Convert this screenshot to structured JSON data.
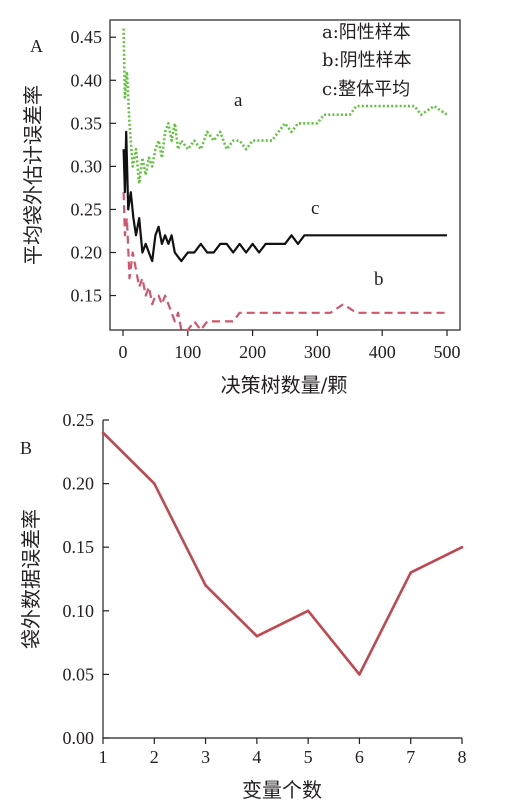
{
  "chart_data": [
    {
      "panel": "A",
      "type": "line",
      "xlabel": "决策树数量/颗",
      "ylabel": "平均袋外估计误差率",
      "xlim": [
        0,
        500
      ],
      "ylim": [
        0.11,
        0.47
      ],
      "x_ticks": [
        "0",
        "100",
        "200",
        "300",
        "400",
        "500"
      ],
      "y_ticks": [
        "0.15",
        "0.20",
        "0.25",
        "0.30",
        "0.35",
        "0.40",
        "0.45"
      ],
      "legend": [
        "a:阳性样本",
        "b:阴性样本",
        "c:整体平均"
      ],
      "legend_position": "top-right",
      "series": [
        {
          "name": "a",
          "style": "dotted",
          "color": "#5ec43a",
          "points": [
            [
              1,
              0.46
            ],
            [
              3,
              0.38
            ],
            [
              6,
              0.41
            ],
            [
              10,
              0.35
            ],
            [
              15,
              0.3
            ],
            [
              20,
              0.32
            ],
            [
              25,
              0.28
            ],
            [
              30,
              0.31
            ],
            [
              35,
              0.29
            ],
            [
              40,
              0.31
            ],
            [
              45,
              0.3
            ],
            [
              50,
              0.32
            ],
            [
              55,
              0.33
            ],
            [
              60,
              0.31
            ],
            [
              65,
              0.34
            ],
            [
              70,
              0.35
            ],
            [
              75,
              0.33
            ],
            [
              80,
              0.35
            ],
            [
              85,
              0.32
            ],
            [
              90,
              0.33
            ],
            [
              100,
              0.32
            ],
            [
              110,
              0.33
            ],
            [
              120,
              0.32
            ],
            [
              130,
              0.34
            ],
            [
              140,
              0.33
            ],
            [
              150,
              0.34
            ],
            [
              160,
              0.32
            ],
            [
              170,
              0.33
            ],
            [
              180,
              0.33
            ],
            [
              190,
              0.32
            ],
            [
              200,
              0.33
            ],
            [
              210,
              0.33
            ],
            [
              220,
              0.33
            ],
            [
              230,
              0.33
            ],
            [
              240,
              0.34
            ],
            [
              250,
              0.35
            ],
            [
              260,
              0.34
            ],
            [
              270,
              0.35
            ],
            [
              280,
              0.35
            ],
            [
              290,
              0.35
            ],
            [
              300,
              0.35
            ],
            [
              310,
              0.36
            ],
            [
              320,
              0.36
            ],
            [
              330,
              0.36
            ],
            [
              340,
              0.36
            ],
            [
              350,
              0.36
            ],
            [
              360,
              0.37
            ],
            [
              380,
              0.37
            ],
            [
              400,
              0.37
            ],
            [
              420,
              0.37
            ],
            [
              440,
              0.37
            ],
            [
              450,
              0.37
            ],
            [
              460,
              0.36
            ],
            [
              480,
              0.37
            ],
            [
              500,
              0.36
            ]
          ]
        },
        {
          "name": "b",
          "style": "dashed",
          "color": "#d3546c",
          "points": [
            [
              1,
              0.27
            ],
            [
              3,
              0.22
            ],
            [
              6,
              0.24
            ],
            [
              10,
              0.17
            ],
            [
              15,
              0.2
            ],
            [
              20,
              0.18
            ],
            [
              25,
              0.16
            ],
            [
              30,
              0.17
            ],
            [
              35,
              0.15
            ],
            [
              40,
              0.16
            ],
            [
              45,
              0.14
            ],
            [
              50,
              0.15
            ],
            [
              55,
              0.15
            ],
            [
              60,
              0.14
            ],
            [
              65,
              0.15
            ],
            [
              70,
              0.14
            ],
            [
              80,
              0.12
            ],
            [
              85,
              0.13
            ],
            [
              90,
              0.11
            ],
            [
              100,
              0.11
            ],
            [
              110,
              0.12
            ],
            [
              120,
              0.11
            ],
            [
              130,
              0.12
            ],
            [
              140,
              0.12
            ],
            [
              150,
              0.12
            ],
            [
              160,
              0.12
            ],
            [
              170,
              0.12
            ],
            [
              180,
              0.13
            ],
            [
              190,
              0.13
            ],
            [
              200,
              0.13
            ],
            [
              220,
              0.13
            ],
            [
              240,
              0.13
            ],
            [
              260,
              0.13
            ],
            [
              280,
              0.13
            ],
            [
              300,
              0.13
            ],
            [
              320,
              0.13
            ],
            [
              340,
              0.14
            ],
            [
              360,
              0.13
            ],
            [
              380,
              0.13
            ],
            [
              400,
              0.13
            ],
            [
              420,
              0.13
            ],
            [
              450,
              0.13
            ],
            [
              470,
              0.13
            ],
            [
              490,
              0.13
            ],
            [
              500,
              0.13
            ]
          ]
        },
        {
          "name": "c",
          "style": "solid",
          "color": "#111111",
          "points": [
            [
              1,
              0.32
            ],
            [
              3,
              0.27
            ],
            [
              5,
              0.34
            ],
            [
              8,
              0.25
            ],
            [
              12,
              0.27
            ],
            [
              16,
              0.24
            ],
            [
              20,
              0.22
            ],
            [
              25,
              0.24
            ],
            [
              30,
              0.2
            ],
            [
              35,
              0.21
            ],
            [
              40,
              0.2
            ],
            [
              45,
              0.19
            ],
            [
              50,
              0.22
            ],
            [
              55,
              0.23
            ],
            [
              60,
              0.21
            ],
            [
              65,
              0.22
            ],
            [
              70,
              0.21
            ],
            [
              75,
              0.22
            ],
            [
              80,
              0.2
            ],
            [
              90,
              0.19
            ],
            [
              100,
              0.2
            ],
            [
              110,
              0.2
            ],
            [
              120,
              0.21
            ],
            [
              130,
              0.2
            ],
            [
              140,
              0.2
            ],
            [
              150,
              0.21
            ],
            [
              160,
              0.21
            ],
            [
              170,
              0.2
            ],
            [
              180,
              0.21
            ],
            [
              190,
              0.2
            ],
            [
              200,
              0.21
            ],
            [
              210,
              0.2
            ],
            [
              220,
              0.21
            ],
            [
              230,
              0.21
            ],
            [
              240,
              0.21
            ],
            [
              250,
              0.21
            ],
            [
              260,
              0.22
            ],
            [
              270,
              0.21
            ],
            [
              280,
              0.22
            ],
            [
              290,
              0.22
            ],
            [
              300,
              0.22
            ],
            [
              320,
              0.22
            ],
            [
              340,
              0.22
            ],
            [
              360,
              0.22
            ],
            [
              380,
              0.22
            ],
            [
              400,
              0.22
            ],
            [
              420,
              0.22
            ],
            [
              440,
              0.22
            ],
            [
              460,
              0.22
            ],
            [
              480,
              0.22
            ],
            [
              500,
              0.22
            ]
          ]
        }
      ]
    },
    {
      "panel": "B",
      "type": "line",
      "xlabel": "变量个数",
      "ylabel": "袋外数据误差率",
      "xlim": [
        1,
        8
      ],
      "ylim": [
        0,
        0.25
      ],
      "x_ticks": [
        "1",
        "2",
        "3",
        "4",
        "5",
        "6",
        "7",
        "8"
      ],
      "y_ticks": [
        "0.00",
        "0.05",
        "0.10",
        "0.15",
        "0.20",
        "0.25"
      ],
      "series": [
        {
          "color": "#c1474f",
          "x": [
            1,
            2,
            3,
            4,
            5,
            6,
            7,
            8
          ],
          "values": [
            0.24,
            0.2,
            0.12,
            0.08,
            0.1,
            0.05,
            0.13,
            0.15
          ]
        }
      ]
    }
  ]
}
